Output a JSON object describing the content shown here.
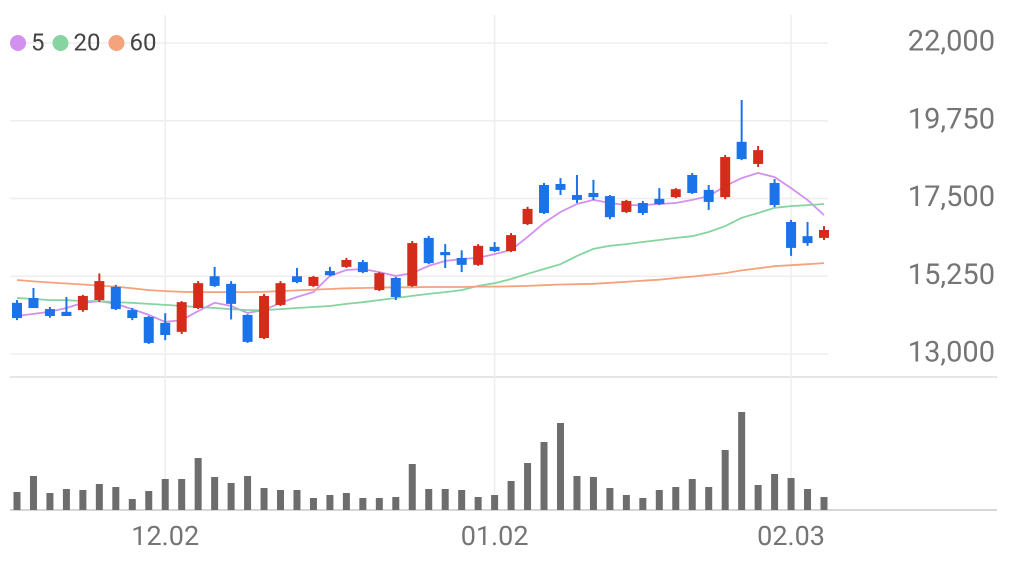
{
  "chart_data": {
    "type": "candlestick",
    "categories": [
      null,
      null,
      null,
      null,
      null,
      null,
      null,
      null,
      null,
      "12.02",
      null,
      null,
      null,
      null,
      null,
      null,
      null,
      null,
      null,
      null,
      null,
      null,
      null,
      null,
      null,
      null,
      null,
      null,
      null,
      "01.02",
      null,
      null,
      null,
      null,
      null,
      null,
      null,
      null,
      null,
      null,
      null,
      null,
      null,
      null,
      null,
      null,
      null,
      "02.03",
      null,
      null
    ],
    "open": [
      14480,
      14620,
      14300,
      14220,
      14270,
      14560,
      14940,
      14270,
      14070,
      13900,
      13640,
      14330,
      15250,
      15030,
      14130,
      13460,
      14420,
      15250,
      14970,
      15400,
      15520,
      15660,
      14850,
      15200,
      14970,
      16360,
      15950,
      15780,
      15580,
      16100,
      15980,
      16760,
      17890,
      17920,
      17600,
      17660,
      17570,
      17110,
      17370,
      17490,
      17540,
      18180,
      17750,
      17540,
      19140,
      18500,
      17950,
      16820,
      16410,
      16360
    ],
    "high": [
      14560,
      14910,
      14360,
      14650,
      14710,
      15330,
      15000,
      14330,
      14100,
      14180,
      14530,
      15110,
      15520,
      15110,
      14150,
      14740,
      15110,
      15490,
      15260,
      15520,
      15780,
      15720,
      15370,
      15230,
      16270,
      16420,
      16180,
      16000,
      16180,
      16240,
      16500,
      17260,
      17950,
      18090,
      18180,
      18040,
      17600,
      17460,
      17430,
      17800,
      17800,
      18240,
      17890,
      18760,
      20350,
      19020,
      18060,
      16880,
      16820,
      16700
    ],
    "low": [
      13980,
      14330,
      14050,
      14100,
      14220,
      14500,
      14270,
      13980,
      13290,
      13400,
      13580,
      14300,
      14940,
      14000,
      13320,
      13430,
      14390,
      15050,
      14940,
      15250,
      15490,
      15340,
      14820,
      14560,
      14940,
      15600,
      15490,
      15370,
      15550,
      15950,
      15950,
      16730,
      17050,
      17600,
      17370,
      17460,
      16900,
      17080,
      17020,
      17310,
      17510,
      17630,
      17170,
      17480,
      18610,
      18410,
      17250,
      15840,
      16130,
      16300
    ],
    "close": [
      14040,
      14330,
      14100,
      14100,
      14680,
      15110,
      14300,
      14040,
      13320,
      13550,
      14500,
      15050,
      14970,
      14450,
      13350,
      14680,
      15050,
      15080,
      15230,
      15280,
      15720,
      15370,
      15340,
      14650,
      16210,
      15630,
      15860,
      15580,
      16130,
      15980,
      16440,
      17200,
      17080,
      17750,
      17460,
      17540,
      16960,
      17430,
      17080,
      17340,
      17770,
      17660,
      17400,
      18700,
      18640,
      18900,
      17310,
      16070,
      16210,
      16590
    ],
    "up_color": "#d42c1a",
    "down_color": "#1a73e8",
    "series": [
      {
        "name": "5",
        "color": "#d291ee",
        "values": [
          14100,
          14160,
          14220,
          14330,
          14480,
          14530,
          14450,
          14300,
          14130,
          13930,
          13980,
          14240,
          14480,
          14390,
          14190,
          14270,
          14480,
          14650,
          14790,
          15260,
          15430,
          15460,
          15370,
          15260,
          15340,
          15550,
          15690,
          15750,
          15780,
          15890,
          16010,
          16390,
          16790,
          17110,
          17340,
          17460,
          17370,
          17310,
          17310,
          17340,
          17370,
          17460,
          17570,
          17860,
          18090,
          18240,
          18120,
          17800,
          17460,
          17020
        ]
      },
      {
        "name": "20",
        "color": "#86d4a0",
        "values": [
          14620,
          14590,
          14560,
          14560,
          14530,
          14530,
          14500,
          14480,
          14450,
          14420,
          14390,
          14360,
          14330,
          14300,
          14270,
          14270,
          14300,
          14330,
          14360,
          14390,
          14450,
          14500,
          14560,
          14620,
          14680,
          14740,
          14790,
          14850,
          14970,
          15050,
          15170,
          15320,
          15460,
          15600,
          15840,
          16040,
          16130,
          16180,
          16240,
          16300,
          16360,
          16410,
          16530,
          16700,
          16940,
          17080,
          17230,
          17280,
          17310,
          17340
        ]
      },
      {
        "name": "60",
        "color": "#f4a37c",
        "values": [
          15140,
          15100,
          15070,
          15040,
          15010,
          14980,
          14950,
          14900,
          14850,
          14820,
          14800,
          14790,
          14790,
          14790,
          14790,
          14800,
          14820,
          14840,
          14860,
          14880,
          14900,
          14910,
          14920,
          14930,
          14930,
          14940,
          14940,
          14940,
          14950,
          14950,
          14960,
          14970,
          14990,
          15010,
          15020,
          15030,
          15060,
          15090,
          15120,
          15150,
          15200,
          15240,
          15290,
          15340,
          15420,
          15480,
          15540,
          15570,
          15600,
          15630
        ]
      }
    ],
    "volume": [
      18,
      34,
      17,
      21,
      20,
      26,
      23,
      11,
      19,
      31,
      31,
      52,
      33,
      27,
      34,
      22,
      20,
      20,
      12,
      15,
      17,
      12,
      12,
      13,
      46,
      21,
      21,
      20,
      13,
      15,
      29,
      47,
      68,
      87,
      34,
      33,
      22,
      15,
      12,
      20,
      23,
      31,
      23,
      60,
      98,
      25,
      36,
      32,
      21,
      13
    ],
    "volume_color": "#6d6d6d",
    "ylim": [
      12334,
      22666
    ],
    "yticks": [
      {
        "value": 13000,
        "label": "13,000"
      },
      {
        "value": 15250,
        "label": "15,250"
      },
      {
        "value": 17500,
        "label": "17,500"
      },
      {
        "value": 19750,
        "label": "19,750"
      },
      {
        "value": 22000,
        "label": "22,000"
      }
    ],
    "grid": true
  }
}
